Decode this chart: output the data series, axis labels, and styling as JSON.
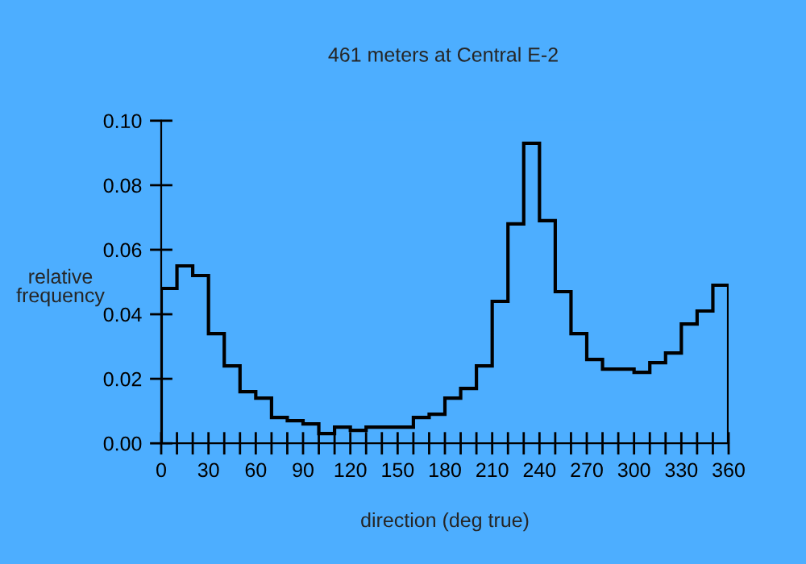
{
  "chart_data": {
    "type": "histogram",
    "title": "461 meters at Central E-2",
    "xlabel": "direction (deg true)",
    "ylabel": "relative\nfrequency",
    "bins": [
      0,
      10,
      20,
      30,
      40,
      50,
      60,
      70,
      80,
      90,
      100,
      110,
      120,
      130,
      140,
      150,
      160,
      170,
      180,
      190,
      200,
      210,
      220,
      230,
      240,
      250,
      260,
      270,
      280,
      290,
      300,
      310,
      320,
      330,
      340,
      350,
      360
    ],
    "values": [
      0.048,
      0.055,
      0.052,
      0.034,
      0.024,
      0.016,
      0.014,
      0.008,
      0.007,
      0.006,
      0.003,
      0.005,
      0.004,
      0.005,
      0.005,
      0.005,
      0.008,
      0.009,
      0.014,
      0.017,
      0.024,
      0.044,
      0.068,
      0.093,
      0.069,
      0.047,
      0.034,
      0.026,
      0.023,
      0.023,
      0.022,
      0.025,
      0.028,
      0.037,
      0.041,
      0.049
    ],
    "color": "#000000",
    "xlim": [
      0,
      360
    ],
    "ylim": [
      0,
      0.1
    ],
    "xticks": [
      0,
      {
        "value": 10,
        "label": null
      },
      {
        "value": 20,
        "label": null
      },
      30,
      {
        "value": 40,
        "label": null
      },
      {
        "value": 50,
        "label": null
      },
      60,
      {
        "value": 70,
        "label": null
      },
      {
        "value": 80,
        "label": null
      },
      90,
      {
        "value": 100,
        "label": null
      },
      {
        "value": 110,
        "label": null
      },
      120,
      {
        "value": 130,
        "label": null
      },
      {
        "value": 140,
        "label": null
      },
      150,
      {
        "value": 160,
        "label": null
      },
      {
        "value": 170,
        "label": null
      },
      180,
      {
        "value": 190,
        "label": null
      },
      {
        "value": 200,
        "label": null
      },
      210,
      {
        "value": 220,
        "label": null
      },
      {
        "value": 230,
        "label": null
      },
      240,
      {
        "value": 250,
        "label": null
      },
      {
        "value": 260,
        "label": null
      },
      270,
      {
        "value": 280,
        "label": null
      },
      {
        "value": 290,
        "label": null
      },
      300,
      {
        "value": 310,
        "label": null
      },
      {
        "value": 320,
        "label": null
      },
      330,
      {
        "value": 340,
        "label": null
      },
      {
        "value": 350,
        "label": null
      },
      360
    ],
    "yticks": [
      {
        "value": 0,
        "label": "0.00"
      },
      {
        "value": 0.02,
        "label": "0.02"
      },
      {
        "value": 0.04,
        "label": "0.04"
      },
      {
        "value": 0.06,
        "label": "0.06"
      },
      {
        "value": 0.08,
        "label": "0.08"
      },
      {
        "value": 0.1,
        "label": "0.10"
      }
    ],
    "grid": false,
    "legend": false
  }
}
